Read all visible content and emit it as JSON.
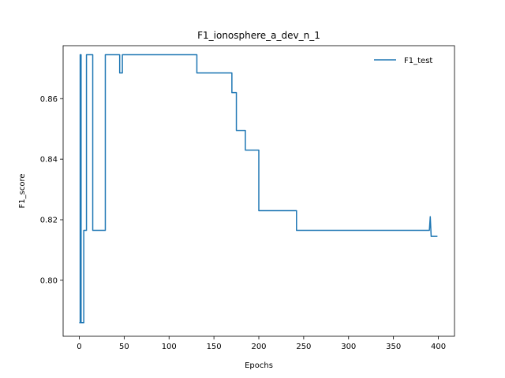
{
  "chart_data": {
    "type": "line",
    "title": "F1_ionosphere_a_dev_n_1",
    "xlabel": "Epochs",
    "ylabel": "F1_score",
    "xlim": [
      -18,
      418
    ],
    "ylim": [
      0.7815,
      0.8775
    ],
    "x_ticks": [
      0,
      50,
      100,
      150,
      200,
      250,
      300,
      350,
      400
    ],
    "y_ticks": [
      0.8,
      0.82,
      0.84,
      0.86
    ],
    "x_tick_labels": [
      "0",
      "50",
      "100",
      "150",
      "200",
      "250",
      "300",
      "350",
      "400"
    ],
    "y_tick_labels": [
      "0.80",
      "0.82",
      "0.84",
      "0.86"
    ],
    "grid": false,
    "legend": "top-right",
    "series": [
      {
        "name": "F1_test",
        "color": "#1f77b4",
        "x": [
          0,
          1,
          1,
          2,
          2,
          5,
          5,
          6,
          6,
          8,
          8,
          15,
          15,
          29,
          29,
          45,
          45,
          48,
          48,
          131,
          131,
          170,
          170,
          173,
          173,
          175,
          175,
          183,
          183,
          185,
          185,
          200,
          200,
          242,
          242,
          390,
          390,
          391,
          391,
          392,
          392,
          399
        ],
        "y": [
          0.786,
          0.786,
          0.8745,
          0.8745,
          0.786,
          0.786,
          0.8165,
          0.8165,
          0.8165,
          0.8165,
          0.8745,
          0.8745,
          0.8165,
          0.8165,
          0.8745,
          0.8745,
          0.8685,
          0.8685,
          0.8745,
          0.8745,
          0.8685,
          0.8685,
          0.862,
          0.862,
          0.862,
          0.862,
          0.8495,
          0.8495,
          0.8495,
          0.8495,
          0.843,
          0.843,
          0.823,
          0.823,
          0.8165,
          0.8165,
          0.8165,
          0.821,
          0.821,
          0.8145,
          0.8145,
          0.8145
        ]
      }
    ]
  }
}
